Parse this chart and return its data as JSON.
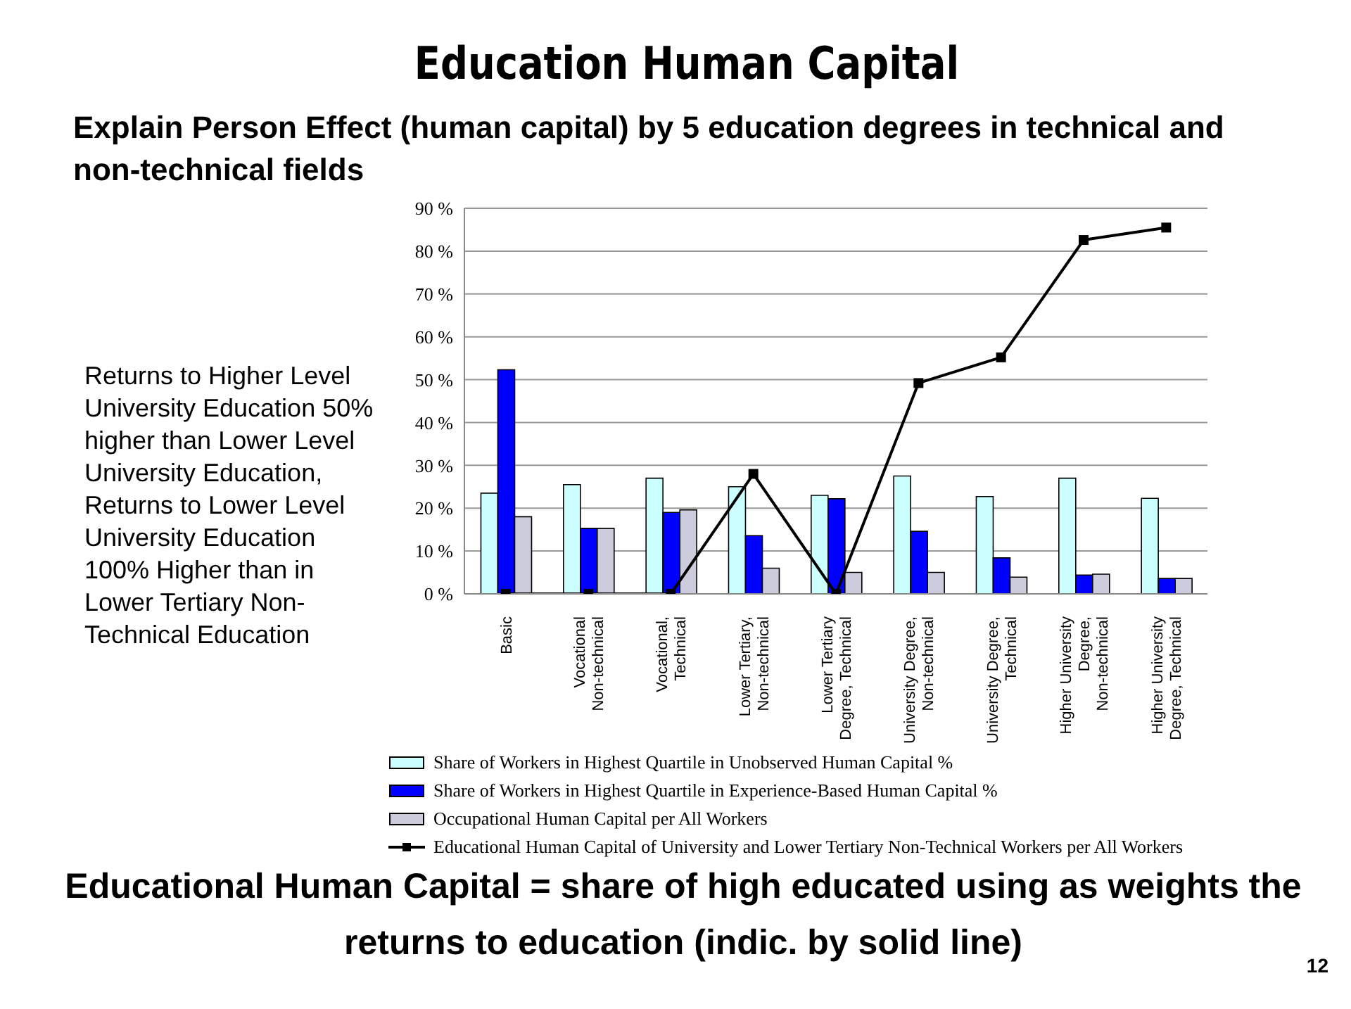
{
  "chart_data": {
    "type": "bar",
    "title": "Education Human Capital",
    "subtitle": "Explain Person Effect (human capital) by 5 education degrees in technical and non-technical fields",
    "categories": [
      "Basic",
      "Vocational Non-technical",
      "Vocational, Technical",
      "Lower Tertiary, Non-technical",
      "Lower Tertiary Degree, Technical",
      "University Degree, Non-technical",
      "University Degree, Technical",
      "Higher University Degree, Non-technical",
      "Higher University Degree, Technical"
    ],
    "series": [
      {
        "name": "Share of Workers in Highest Quartile in Unobserved Human Capital %",
        "color": "#ccffff",
        "values": [
          23.5,
          25.5,
          27,
          25,
          23,
          27.5,
          22.7,
          27,
          22.3
        ]
      },
      {
        "name": "Share of Workers in Highest Quartile in Experience-Based Human Capital %",
        "color": "#0000ff",
        "values": [
          52.3,
          15.3,
          19,
          13.6,
          22.2,
          14.6,
          8.4,
          4.4,
          3.6
        ]
      },
      {
        "name": "Occupational Human Capital per All Workers",
        "color": "#ccccdd",
        "values": [
          18,
          15.3,
          19.6,
          6,
          5,
          5,
          3.9,
          4.6,
          3.6
        ]
      },
      {
        "name": "Educational Human Capital of University and Lower Tertiary Non-Technical Workers per All Workers",
        "type": "line",
        "color": "#000000",
        "marker": "square",
        "values": [
          0,
          0,
          0,
          28,
          0,
          49.2,
          55.2,
          82.6,
          85.5
        ]
      }
    ],
    "ylim": [
      0,
      90
    ],
    "yticks": [
      {
        "value": 0,
        "label": "0 %"
      },
      {
        "value": 10,
        "label": "10 %"
      },
      {
        "value": 20,
        "label": "20 %"
      },
      {
        "value": 30,
        "label": "30 %"
      },
      {
        "value": 40,
        "label": "40 %"
      },
      {
        "value": 50,
        "label": "50 %"
      },
      {
        "value": 60,
        "label": "60 %"
      },
      {
        "value": 70,
        "label": "70 %"
      },
      {
        "value": 80,
        "label": "80 %"
      },
      {
        "value": 90,
        "label": "90 %"
      }
    ],
    "grid": "y",
    "legend": "bottom",
    "annotations": [
      "Returns to Higher Level University Education 50% higher than Lower Level University Education, Returns to Lower Level University Education 100% Higher than in Lower Tertiary Non-Technical Education",
      "Educational Human Capital = share of high educated using as weights the returns to education (indic. by solid line)",
      "12"
    ]
  }
}
